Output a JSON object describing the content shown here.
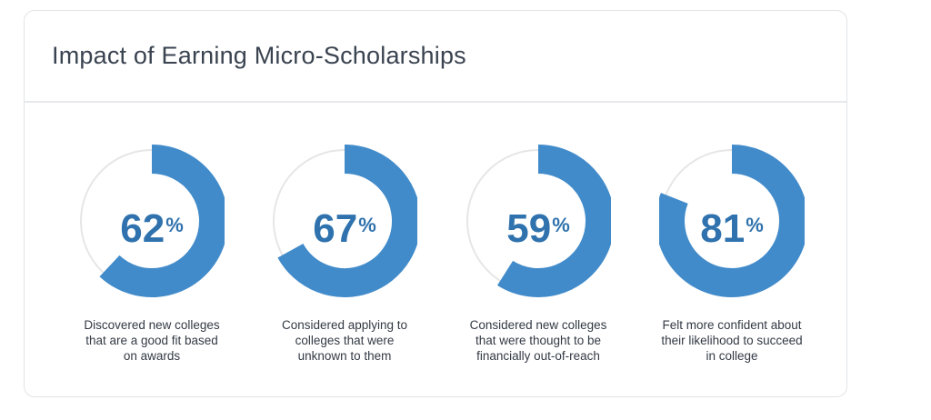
{
  "card": {
    "title": "Impact of Earning Micro-Scholarships"
  },
  "colors": {
    "accent": "#428bca",
    "value_text": "#2f72ad",
    "track": "#e6e6e6"
  },
  "chart_data": {
    "type": "pie",
    "unit": "%",
    "categories": [
      "Discovered new colleges that are a good fit based on awards",
      "Considered applying to colleges that were unknown to them",
      "Considered new colleges that were thought to be financially out-of-reach",
      "Felt more confident about their likelihood to succeed in college"
    ],
    "values": [
      62,
      67,
      59,
      81
    ]
  },
  "stats": [
    {
      "value": "62",
      "unit": "%",
      "lines": [
        "Discovered new colleges",
        "that are a good fit based",
        "on awards"
      ]
    },
    {
      "value": "67",
      "unit": "%",
      "lines": [
        "Considered applying to",
        "colleges that were",
        "unknown to them"
      ]
    },
    {
      "value": "59",
      "unit": "%",
      "lines": [
        "Considered new colleges",
        "that were thought to be",
        "financially out-of-reach"
      ]
    },
    {
      "value": "81",
      "unit": "%",
      "lines": [
        "Felt more confident about",
        "their likelihood to succeed",
        "in college"
      ]
    }
  ]
}
